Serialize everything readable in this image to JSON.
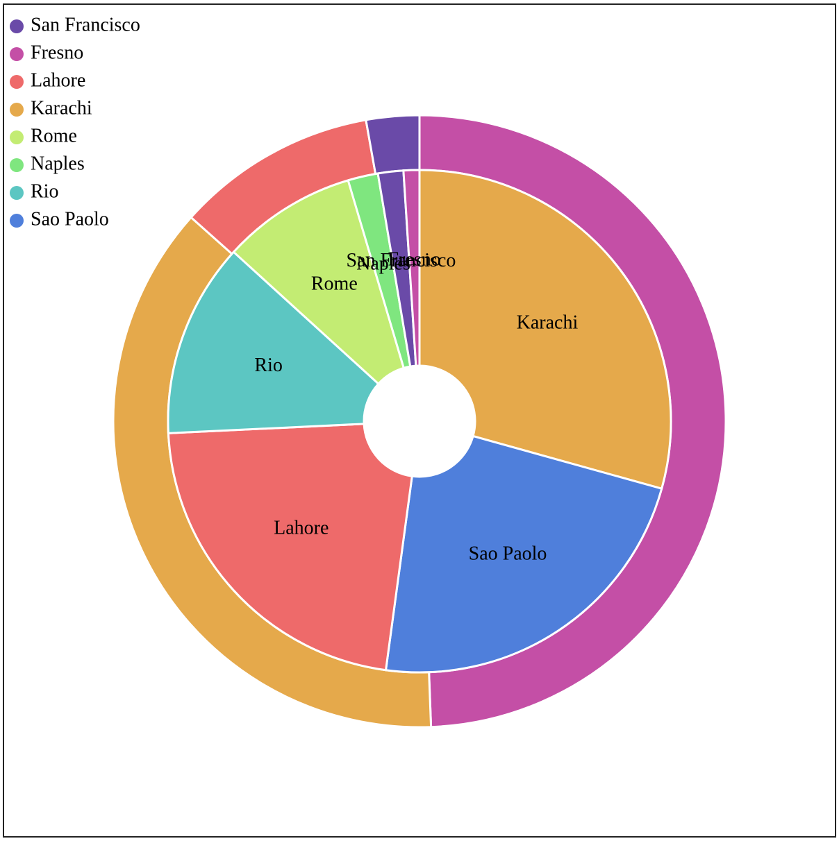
{
  "chart_data": {
    "type": "pie",
    "variant": "nested-donut",
    "title": "",
    "legend": {
      "position": "top-left",
      "entries": [
        {
          "label": "San Francisco",
          "color": "#6a4aa8"
        },
        {
          "label": "Fresno",
          "color": "#c44fa6"
        },
        {
          "label": "Lahore",
          "color": "#ee6a6a"
        },
        {
          "label": "Karachi",
          "color": "#e5a94b"
        },
        {
          "label": "Rome",
          "color": "#c3ec73"
        },
        {
          "label": "Naples",
          "color": "#7fe67f"
        },
        {
          "label": "Rio",
          "color": "#5cc6c2"
        },
        {
          "label": "Sao Paolo",
          "color": "#4f7fdb"
        }
      ]
    },
    "outer_ring": [
      {
        "name": "Fresno",
        "value": 49.4,
        "color": "#c44fa6"
      },
      {
        "name": "Karachi",
        "value": 37.2,
        "color": "#e5a94b"
      },
      {
        "name": "Lahore",
        "value": 10.6,
        "color": "#ee6a6a"
      },
      {
        "name": "San Francisco",
        "value": 2.8,
        "color": "#6a4aa8"
      }
    ],
    "inner_ring": [
      {
        "name": "Karachi",
        "value": 28.8,
        "color": "#e5a94b"
      },
      {
        "name": "Sao Paolo",
        "value": 22.4,
        "color": "#4f7fdb"
      },
      {
        "name": "Lahore",
        "value": 21.7,
        "color": "#ee6a6a"
      },
      {
        "name": "Rio",
        "value": 12.3,
        "color": "#5cc6c2"
      },
      {
        "name": "Rome",
        "value": 8.5,
        "color": "#c3ec73"
      },
      {
        "name": "Naples",
        "value": 1.9,
        "color": "#7fe67f"
      },
      {
        "name": "San Francisco",
        "value": 1.6,
        "color": "#6a4aa8"
      },
      {
        "name": "Fresno",
        "value": 1.0,
        "color": "#c44fa6"
      }
    ]
  }
}
